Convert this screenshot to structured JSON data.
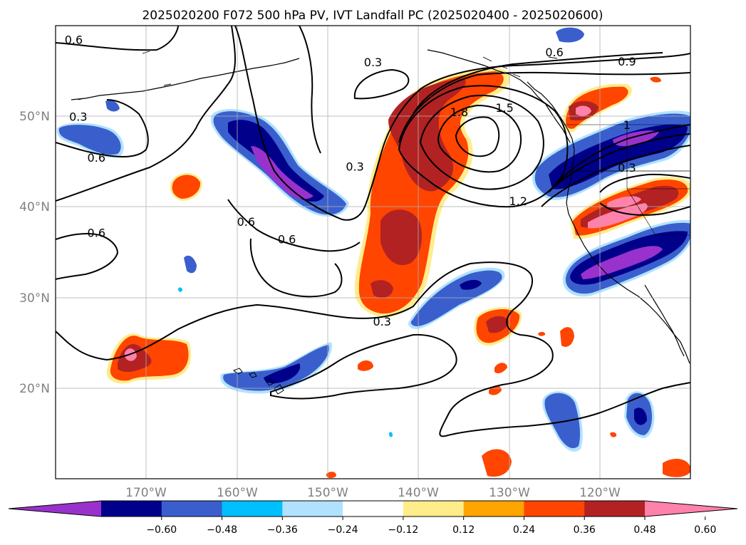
{
  "figure": {
    "title": "2025020200 F072 500 hPa PV, IVT Landfall PC (2025020400 - 2025020600)"
  },
  "map": {
    "lon_range": [
      -180,
      -110
    ],
    "lat_range": [
      10,
      60
    ],
    "lat_ticks": [
      {
        "value": 20,
        "label": "20°N"
      },
      {
        "value": 30,
        "label": "30°N"
      },
      {
        "value": 40,
        "label": "40°N"
      },
      {
        "value": 50,
        "label": "50°N"
      }
    ],
    "lon_ticks": [
      {
        "value": -170,
        "label": "170°W"
      },
      {
        "value": -160,
        "label": "160°W"
      },
      {
        "value": -150,
        "label": "150°W"
      },
      {
        "value": -140,
        "label": "140°W"
      },
      {
        "value": -130,
        "label": "130°W"
      },
      {
        "value": -120,
        "label": "120°W"
      }
    ],
    "contour_labels": [
      {
        "text": "0.6",
        "lon": -178.0,
        "lat": 58.0
      },
      {
        "text": "0.3",
        "lon": -145.0,
        "lat": 55.5
      },
      {
        "text": "0.6",
        "lon": -125.0,
        "lat": 56.6
      },
      {
        "text": "0.9",
        "lon": -117.0,
        "lat": 55.6
      },
      {
        "text": "0.3",
        "lon": -177.5,
        "lat": 49.5
      },
      {
        "text": "0.6",
        "lon": -175.5,
        "lat": 45.0
      },
      {
        "text": "1.8",
        "lon": -135.5,
        "lat": 50.0
      },
      {
        "text": "1.5",
        "lon": -130.5,
        "lat": 50.5
      },
      {
        "text": "1",
        "lon": -117.0,
        "lat": 48.6
      },
      {
        "text": "0.3",
        "lon": -147.0,
        "lat": 44.0
      },
      {
        "text": "0.3",
        "lon": -117.0,
        "lat": 43.9
      },
      {
        "text": "1.2",
        "lon": -129.0,
        "lat": 40.2
      },
      {
        "text": "0.6",
        "lon": -159.0,
        "lat": 37.9
      },
      {
        "text": "0.6",
        "lon": -154.5,
        "lat": 36.0
      },
      {
        "text": "0.6",
        "lon": -175.5,
        "lat": 36.7
      },
      {
        "text": "0.3",
        "lon": -144.0,
        "lat": 26.9
      }
    ]
  },
  "colorbar": {
    "colors": [
      "#9932cc",
      "#00008b",
      "#3a5fcd",
      "#00bfff",
      "#b0e2ff",
      "#ffffff",
      "#ffec8b",
      "#ffa500",
      "#ff4500",
      "#b22222",
      "#ff82ab"
    ],
    "ticks": [
      "−0.60",
      "−0.48",
      "−0.36",
      "−0.24",
      "−0.12",
      "0.12",
      "0.24",
      "0.36",
      "0.48",
      "0.60"
    ]
  },
  "chart_data": {
    "type": "heatmap",
    "title": "2025020200 F072 500 hPa PV, IVT Landfall PC (2025020400 - 2025020600)",
    "lon_range": [
      -180,
      -110
    ],
    "lat_range": [
      10,
      60
    ],
    "levels": [
      -0.6,
      -0.48,
      -0.36,
      -0.24,
      -0.12,
      0.12,
      0.24,
      0.36,
      0.48,
      0.6
    ],
    "contour_levels": [
      0.3,
      0.6,
      0.9,
      1.2,
      1.5,
      1.8
    ],
    "filled_regions": [
      {
        "value": 0.55,
        "center": [
          -139,
          45
        ],
        "desc": "main positive band along 140W"
      },
      {
        "value": 0.5,
        "center": [
          -125,
          51
        ],
        "desc": "positive NE Pacific"
      },
      {
        "value": 0.55,
        "center": [
          -116,
          40
        ],
        "desc": "positive over California"
      },
      {
        "value": 0.55,
        "center": [
          -171,
          24
        ],
        "desc": "positive subtropics west"
      },
      {
        "value": 0.45,
        "center": [
          -131,
          28
        ],
        "desc": "positive subtropics central"
      },
      {
        "value": -0.6,
        "center": [
          -156,
          45
        ],
        "desc": "negative NE of 160W"
      },
      {
        "value": -0.6,
        "center": [
          -117,
          46
        ],
        "desc": "negative Pacific NW"
      },
      {
        "value": -0.6,
        "center": [
          -118,
          34
        ],
        "desc": "negative southern California"
      },
      {
        "value": -0.4,
        "center": [
          -139,
          31
        ],
        "desc": "negative band central"
      },
      {
        "value": -0.5,
        "center": [
          -155,
          21
        ],
        "desc": "negative near Hawaii"
      },
      {
        "value": -0.4,
        "center": [
          -121,
          16
        ],
        "desc": "negative south"
      },
      {
        "value": -0.5,
        "center": [
          -115,
          17
        ],
        "desc": "negative southeast"
      }
    ]
  }
}
